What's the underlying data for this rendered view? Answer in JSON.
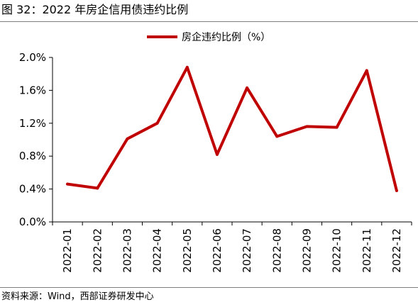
{
  "figure": {
    "title": "图 32：2022 年房企信用债违约比例",
    "source": "资料来源：Wind，西部证券研发中心"
  },
  "chart_data": {
    "type": "line",
    "title": "",
    "xlabel": "",
    "ylabel": "",
    "categories": [
      "2022-01",
      "2022-02",
      "2022-03",
      "2022-04",
      "2022-05",
      "2022-06",
      "2022-07",
      "2022-08",
      "2022-09",
      "2022-10",
      "2022-11",
      "2022-12"
    ],
    "series": [
      {
        "name": "房企违约比例（%）",
        "values": [
          0.46,
          0.41,
          1.01,
          1.2,
          1.88,
          0.82,
          1.63,
          1.04,
          1.16,
          1.15,
          1.84,
          0.38
        ]
      }
    ],
    "ylim": [
      0,
      2.0
    ],
    "yticks": [
      "0.0%",
      "0.4%",
      "0.8%",
      "1.2%",
      "1.6%",
      "2.0%"
    ],
    "grid": false,
    "legend_position": "top-center",
    "color": "#c00000"
  }
}
